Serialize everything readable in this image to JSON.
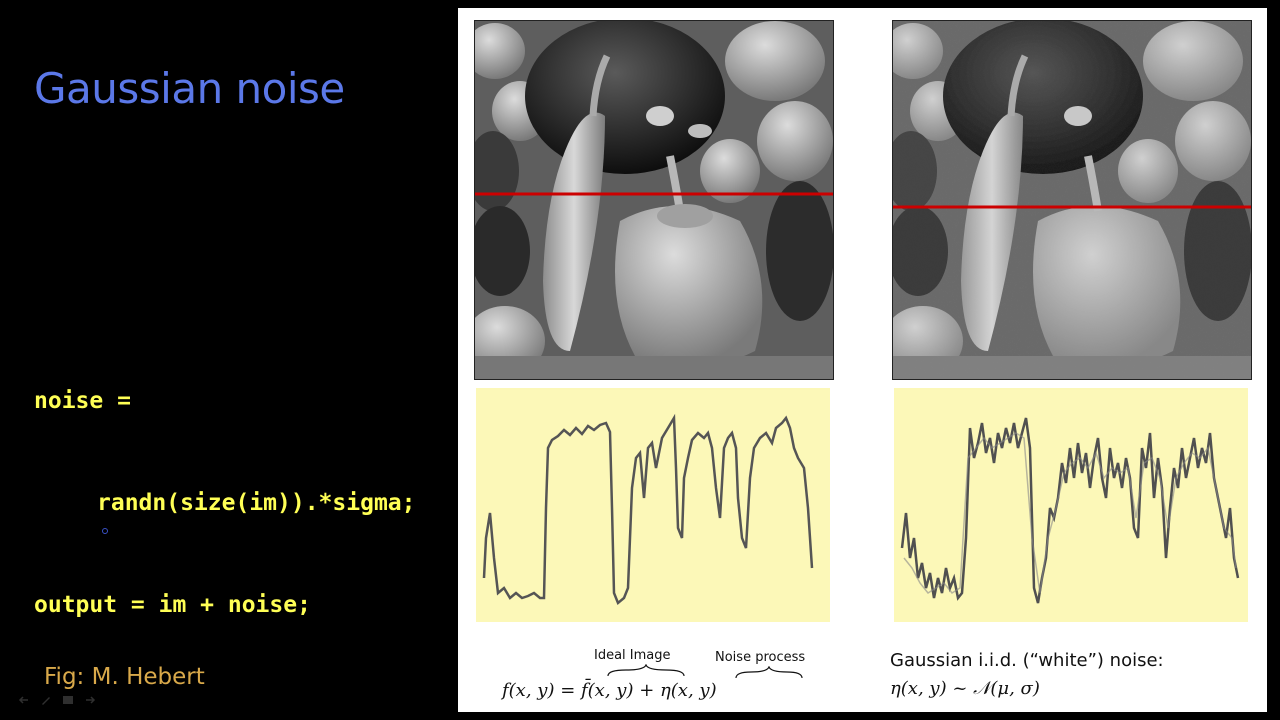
{
  "slide": {
    "title": "Gaussian noise",
    "code_lines": [
      "noise =",
      "randn(size(im)).*sigma;",
      "output = im + noise;"
    ],
    "credit": "Fig: M. Hebert"
  },
  "figure": {
    "left_label_ideal": "Ideal Image",
    "left_label_noise": "Noise process",
    "left_equation": "f(x, y) =  f̄(x, y)  +  η(x, y)",
    "right_caption": "Gaussian i.i.d. (“white”) noise:",
    "right_equation": "η(x, y) ~ 𝒩(μ, σ)"
  },
  "colors": {
    "title": "#5b78e8",
    "code": "#ffff55",
    "credit": "#d9a94a",
    "plot_background": "#fcf8b8",
    "scanline": "#cc0000"
  },
  "icons": [
    "clean-peppers-image",
    "noisy-peppers-image",
    "clean-intensity-profile",
    "noisy-intensity-profile"
  ]
}
